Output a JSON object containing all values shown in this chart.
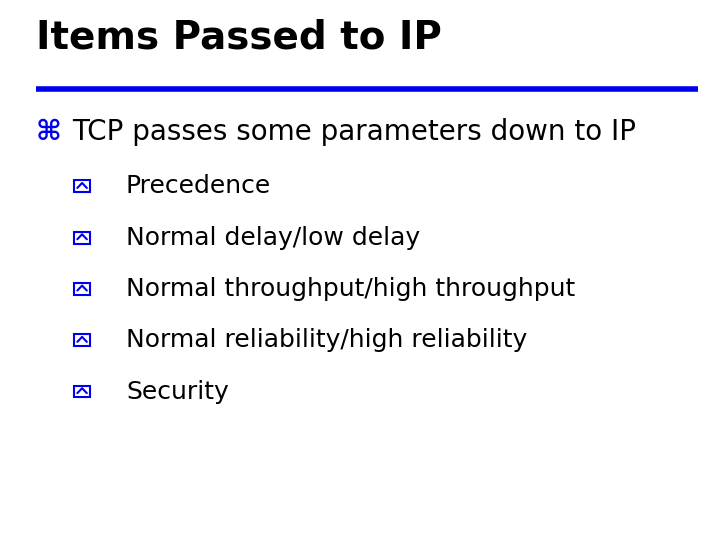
{
  "title": "Items Passed to IP",
  "title_fontsize": 28,
  "title_color": "#000000",
  "title_bold": true,
  "separator_color": "#0000EE",
  "separator_lw": 4,
  "background_color": "#ffffff",
  "bullet1_text": "TCP passes some parameters down to IP",
  "bullet1_fontsize": 20,
  "bullet1_color": "#0000EE",
  "bullet1_text_color": "#000000",
  "sub_bullets": [
    "Precedence",
    "Normal delay/low delay",
    "Normal throughput/high throughput",
    "Normal reliability/high reliability",
    "Security"
  ],
  "sub_bullet_fontsize": 18,
  "sub_bullet_color": "#0000EE",
  "sub_bullet_text_color": "#000000",
  "font_family": "DejaVu Sans"
}
